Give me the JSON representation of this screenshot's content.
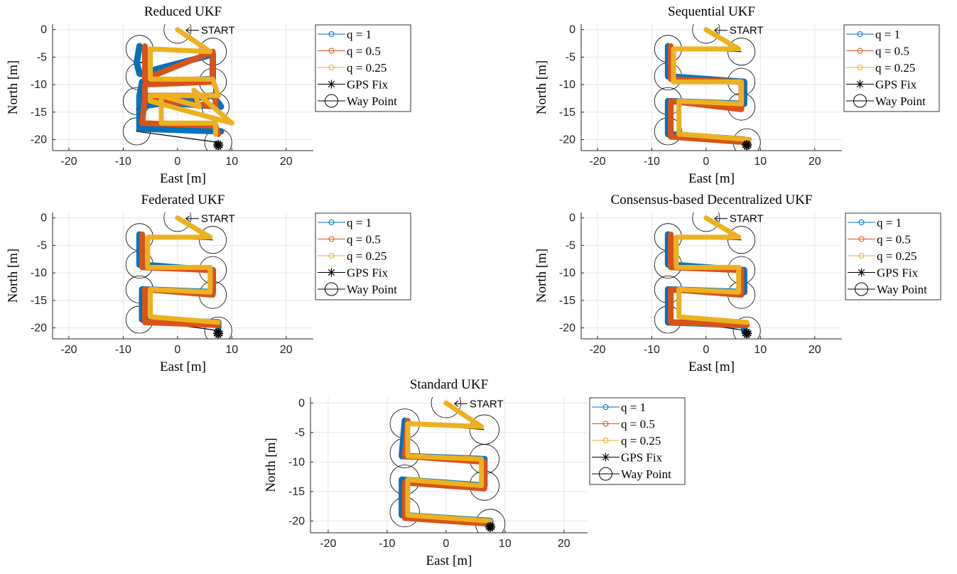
{
  "figure": {
    "colors": {
      "q1": "#0072BD",
      "q05": "#D95319",
      "q025": "#EDB120",
      "black": "#000000",
      "grid": "#E6E6E6",
      "axis": "#262626"
    },
    "legend_labels": [
      "q = 1",
      "q = 0.5",
      "q = 0.25",
      "GPS Fix",
      "Way Point"
    ],
    "start_label": "START",
    "xlabel": "East [m]",
    "ylabel": "North [m]"
  },
  "chart_data": [
    {
      "type": "line",
      "title": "Reduced UKF",
      "xlabel": "East [m]",
      "ylabel": "North [m]",
      "xlim": [
        -23,
        25
      ],
      "ylim": [
        -22,
        1
      ],
      "xticks": [
        -20,
        -10,
        0,
        10,
        20
      ],
      "yticks": [
        0,
        -5,
        -10,
        -15,
        -20
      ],
      "grid": true,
      "legend": "outside-right",
      "waypoints": [
        [
          0,
          0
        ],
        [
          6.5,
          -4
        ],
        [
          -7,
          -3.5
        ],
        [
          -7,
          -8.5
        ],
        [
          6.5,
          -9.5
        ],
        [
          7,
          -14
        ],
        [
          -7.5,
          -13
        ],
        [
          -7.5,
          -18.5
        ],
        [
          7.5,
          -20.5
        ]
      ],
      "gps_fix": [
        7.5,
        -21
      ],
      "series": [
        {
          "name": "q = 1",
          "x": [
            -7,
            -7.5,
            -7,
            6.5,
            6.5,
            -6.5,
            -7,
            -7,
            6.5,
            8,
            -6.5,
            -7,
            -7,
            8
          ],
          "y": [
            -3,
            -6,
            -8,
            -4.5,
            -9,
            -9.5,
            -12,
            -14,
            -12,
            -14,
            -13,
            -15,
            -18,
            -18.5
          ]
        },
        {
          "name": "q = 0.5",
          "x": [
            -6,
            -6,
            6.5,
            6.5,
            -6,
            -6,
            7,
            7,
            -6,
            -6.5,
            7,
            7.5
          ],
          "y": [
            -3,
            -9,
            -4,
            -9.5,
            -10,
            -12,
            -12,
            -14,
            -12.5,
            -17,
            -17.5,
            -19
          ]
        },
        {
          "name": "q = 0.25",
          "x": [
            0,
            6,
            -5,
            -5,
            6.5,
            7.5,
            -5,
            -5,
            10,
            3,
            4,
            -3,
            -3,
            7,
            7
          ],
          "y": [
            0,
            -4,
            -3.5,
            -9,
            -9,
            -12,
            -12,
            -13,
            -17,
            -11,
            -14,
            -12,
            -17,
            -17,
            -19
          ]
        }
      ]
    },
    {
      "type": "line",
      "title": "Sequential UKF",
      "xlabel": "East [m]",
      "ylabel": "North [m]",
      "xlim": [
        -23,
        25
      ],
      "ylim": [
        -22,
        1
      ],
      "xticks": [
        -20,
        -10,
        0,
        10,
        20
      ],
      "yticks": [
        0,
        -5,
        -10,
        -15,
        -20
      ],
      "grid": true,
      "legend": "outside-right",
      "waypoints": [
        [
          0,
          0
        ],
        [
          6.5,
          -4
        ],
        [
          -7,
          -3.5
        ],
        [
          -7,
          -8.5
        ],
        [
          6.5,
          -9.5
        ],
        [
          6.5,
          -14
        ],
        [
          -7,
          -13
        ],
        [
          -7,
          -18.5
        ],
        [
          7.5,
          -20.5
        ]
      ],
      "gps_fix": [
        7.5,
        -21
      ],
      "series": [
        {
          "name": "q = 1",
          "x": [
            -7,
            -7,
            7,
            7,
            -7,
            -7,
            7,
            7
          ],
          "y": [
            -3,
            -8.5,
            -9.5,
            -13.5,
            -13,
            -19,
            -20,
            -20.5
          ]
        },
        {
          "name": "q = 0.5",
          "x": [
            -6.5,
            -6.5,
            6.5,
            6.5,
            -6.5,
            -6.5,
            7.5
          ],
          "y": [
            -3,
            -9,
            -9.5,
            -14.5,
            -13,
            -19.5,
            -20.5
          ]
        },
        {
          "name": "q = 0.25",
          "x": [
            0,
            6,
            -6,
            -6,
            6.5,
            6.5,
            -5,
            -5,
            8
          ],
          "y": [
            0,
            -3.5,
            -3.5,
            -9.5,
            -9.5,
            -13.5,
            -13,
            -19,
            -20
          ]
        }
      ]
    },
    {
      "type": "line",
      "title": "Federated UKF",
      "xlabel": "East [m]",
      "ylabel": "North [m]",
      "xlim": [
        -23,
        25
      ],
      "ylim": [
        -22,
        1
      ],
      "xticks": [
        -20,
        -10,
        0,
        10,
        20
      ],
      "yticks": [
        0,
        -5,
        -10,
        -15,
        -20
      ],
      "grid": true,
      "legend": "outside-right",
      "waypoints": [
        [
          0,
          0
        ],
        [
          6.5,
          -4
        ],
        [
          -7,
          -3.5
        ],
        [
          -7,
          -8.5
        ],
        [
          6.5,
          -9.5
        ],
        [
          6.5,
          -14
        ],
        [
          -7,
          -13
        ],
        [
          -7,
          -18.5
        ],
        [
          7.5,
          -20.5
        ]
      ],
      "gps_fix": [
        7.5,
        -21
      ],
      "series": [
        {
          "name": "q = 1",
          "x": [
            -7,
            -7,
            6.5,
            6.5,
            -6.5,
            -6.5,
            7.5,
            7.5
          ],
          "y": [
            -3,
            -8.5,
            -9.5,
            -13.5,
            -13,
            -18.5,
            -19,
            -20
          ]
        },
        {
          "name": "q = 0.5",
          "x": [
            -6.5,
            -6.5,
            6.5,
            6.5,
            -6,
            -6,
            7.5
          ],
          "y": [
            -3,
            -9,
            -9.5,
            -14,
            -13,
            -19,
            -19.5
          ]
        },
        {
          "name": "q = 0.25",
          "x": [
            0,
            6,
            -5.5,
            -5.5,
            6,
            6,
            -5,
            -5,
            7.5
          ],
          "y": [
            0,
            -3.5,
            -3.5,
            -9,
            -9,
            -13.5,
            -13,
            -18,
            -19
          ]
        }
      ]
    },
    {
      "type": "line",
      "title": "Consensus-based Decentralized UKF",
      "xlabel": "East [m]",
      "ylabel": "North [m]",
      "xlim": [
        -23,
        25
      ],
      "ylim": [
        -22,
        1
      ],
      "xticks": [
        -20,
        -10,
        0,
        10,
        20
      ],
      "yticks": [
        0,
        -5,
        -10,
        -15,
        -20
      ],
      "grid": true,
      "legend": "outside-right",
      "waypoints": [
        [
          0,
          0
        ],
        [
          6.5,
          -4
        ],
        [
          -7,
          -3.5
        ],
        [
          -7,
          -8.5
        ],
        [
          6.5,
          -9.5
        ],
        [
          6.5,
          -14
        ],
        [
          -7,
          -13
        ],
        [
          -7,
          -18.5
        ],
        [
          7.5,
          -20.5
        ]
      ],
      "gps_fix": [
        7.5,
        -21
      ],
      "series": [
        {
          "name": "q = 1",
          "x": [
            -7,
            -7,
            7,
            7,
            -7,
            -7,
            7,
            7
          ],
          "y": [
            -3,
            -8.5,
            -9.5,
            -13.5,
            -13,
            -19,
            -19.5,
            -20.5
          ]
        },
        {
          "name": "q = 0.5",
          "x": [
            -6.5,
            -6.5,
            6.5,
            6.5,
            -6.5,
            -6.5,
            7.5
          ],
          "y": [
            -3,
            -9,
            -9.5,
            -14,
            -13,
            -19,
            -19.5
          ]
        },
        {
          "name": "q = 0.25",
          "x": [
            0,
            6,
            -5.5,
            -5.5,
            6,
            6,
            -5,
            -5,
            7.5
          ],
          "y": [
            0,
            -3.5,
            -3.5,
            -9,
            -9,
            -13.5,
            -13,
            -18,
            -19
          ]
        }
      ]
    },
    {
      "type": "line",
      "title": "Standard UKF",
      "xlabel": "East [m]",
      "ylabel": "North [m]",
      "xlim": [
        -23,
        24
      ],
      "ylim": [
        -22,
        1
      ],
      "xticks": [
        -20,
        -10,
        0,
        10,
        20
      ],
      "yticks": [
        0,
        -5,
        -10,
        -15,
        -20
      ],
      "grid": true,
      "legend": "outside-right",
      "waypoints": [
        [
          0,
          0
        ],
        [
          6.5,
          -4.5
        ],
        [
          -7,
          -3.5
        ],
        [
          -7,
          -8.5
        ],
        [
          6.5,
          -9.5
        ],
        [
          6.5,
          -14
        ],
        [
          -7,
          -13
        ],
        [
          -7,
          -18.5
        ],
        [
          7.5,
          -20.5
        ]
      ],
      "gps_fix": [
        7.5,
        -21
      ],
      "series": [
        {
          "name": "q = 1",
          "x": [
            -7,
            -7.5,
            6.5,
            6.5,
            -7.5,
            -7.5,
            7.5,
            7.5
          ],
          "y": [
            -3,
            -9,
            -9.5,
            -14,
            -13,
            -19,
            -20,
            -21
          ]
        },
        {
          "name": "q = 0.5",
          "x": [
            -6.5,
            -7,
            6.5,
            6.5,
            -7,
            -7,
            7.5
          ],
          "y": [
            -3,
            -9,
            -10,
            -14.5,
            -13.5,
            -19.5,
            -20.5
          ]
        },
        {
          "name": "q = 0.25",
          "x": [
            0,
            6,
            -6.5,
            -6.5,
            6,
            6,
            -6.5,
            -6.5,
            7.5
          ],
          "y": [
            0,
            -4,
            -3.5,
            -9,
            -9.5,
            -14,
            -13,
            -19,
            -20
          ]
        }
      ]
    }
  ]
}
